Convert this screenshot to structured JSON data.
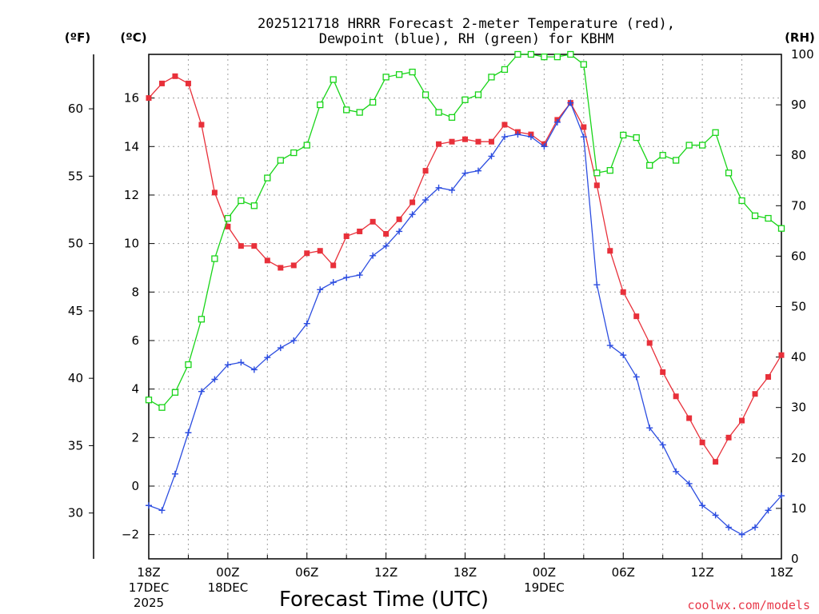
{
  "title_line1": "2025121718 HRRR Forecast 2-meter Temperature (red),",
  "title_line2": "Dewpoint (blue), RH (green) for KBHM",
  "unit_f": "(ºF)",
  "unit_c": "(ºC)",
  "unit_rh": "(RH)",
  "credit": "coolwx.com/models",
  "chart_data": {
    "type": "line",
    "title": "2025121718 HRRR Forecast 2-meter Temperature (red), Dewpoint (blue), RH (green) for KBHM",
    "xlabel": "Forecast Time (UTC)",
    "x": [
      0,
      1,
      2,
      3,
      4,
      5,
      6,
      7,
      8,
      9,
      10,
      11,
      12,
      13,
      14,
      15,
      16,
      17,
      18,
      19,
      20,
      21,
      22,
      23,
      24,
      25,
      26,
      27,
      28,
      29,
      30,
      31,
      32,
      33,
      34,
      35,
      36,
      37,
      38,
      39,
      40,
      41,
      42,
      43,
      44,
      45,
      46,
      47,
      48
    ],
    "x_unit": "forecast hour",
    "xlim": [
      0,
      48
    ],
    "x_ticks": [
      {
        "hour": 0,
        "lines": [
          "18Z",
          "17DEC",
          "2025"
        ]
      },
      {
        "hour": 6,
        "lines": [
          "00Z",
          "18DEC"
        ]
      },
      {
        "hour": 12,
        "lines": [
          "06Z"
        ]
      },
      {
        "hour": 18,
        "lines": [
          "12Z"
        ]
      },
      {
        "hour": 24,
        "lines": [
          "18Z"
        ]
      },
      {
        "hour": 30,
        "lines": [
          "00Z",
          "19DEC"
        ]
      },
      {
        "hour": 36,
        "lines": [
          "06Z"
        ]
      },
      {
        "hour": 42,
        "lines": [
          "12Z"
        ]
      },
      {
        "hour": 48,
        "lines": [
          "18Z"
        ]
      }
    ],
    "y_left_c": {
      "label": "(ºC)",
      "range": [
        -3,
        17.8
      ],
      "ticks": [
        16,
        14,
        12,
        10,
        8,
        6,
        4,
        2,
        0,
        -2
      ]
    },
    "y_left_f": {
      "label": "(ºF)",
      "ticks": [
        60,
        55,
        50,
        45,
        40,
        35,
        30
      ]
    },
    "y_right_rh": {
      "label": "(RH)",
      "range": [
        0,
        100
      ],
      "ticks": [
        100,
        90,
        80,
        70,
        60,
        50,
        40,
        30,
        20,
        10,
        0
      ]
    },
    "series": [
      {
        "name": "Temperature",
        "axis": "C",
        "color": "#e8303a",
        "marker": "filled-square",
        "values": [
          16.0,
          16.6,
          16.9,
          16.6,
          14.9,
          12.1,
          10.7,
          9.9,
          9.9,
          9.3,
          9.0,
          9.1,
          9.6,
          9.7,
          9.1,
          10.3,
          10.5,
          10.9,
          10.4,
          11.0,
          11.7,
          13.0,
          14.1,
          14.2,
          14.3,
          14.2,
          14.2,
          14.9,
          14.6,
          14.5,
          14.1,
          15.1,
          15.8,
          14.8,
          12.4,
          9.7,
          8.0,
          7.0,
          5.9,
          4.7,
          3.7,
          2.8,
          1.8,
          1.0,
          2.0,
          2.7,
          3.8,
          4.5,
          5.4
        ]
      },
      {
        "name": "Dewpoint",
        "axis": "C",
        "color": "#2c4de0",
        "marker": "plus",
        "values": [
          -0.8,
          -1.0,
          0.5,
          2.2,
          3.9,
          4.4,
          5.0,
          5.1,
          4.8,
          5.3,
          5.7,
          6.0,
          6.7,
          8.1,
          8.4,
          8.6,
          8.7,
          9.5,
          9.9,
          10.5,
          11.2,
          11.8,
          12.3,
          12.2,
          12.9,
          13.0,
          13.6,
          14.4,
          14.5,
          14.4,
          14.0,
          15.0,
          15.8,
          14.4,
          8.3,
          5.8,
          5.4,
          4.5,
          2.4,
          1.7,
          0.6,
          0.1,
          -0.8,
          -1.2,
          -1.7,
          -2.0,
          -1.7,
          -1.0,
          -0.4
        ]
      },
      {
        "name": "RH",
        "axis": "RH",
        "color": "#18d418",
        "marker": "open-square",
        "values": [
          31.5,
          30.0,
          33.0,
          38.5,
          47.5,
          59.5,
          67.5,
          71.0,
          70.0,
          75.5,
          79.0,
          80.5,
          82.0,
          90.0,
          95.0,
          89.0,
          88.5,
          90.5,
          95.5,
          96.0,
          96.5,
          92.0,
          88.5,
          87.5,
          91.0,
          92.0,
          95.5,
          97.0,
          100.0,
          100.0,
          99.5,
          99.5,
          100.0,
          98.0,
          76.5,
          77.0,
          84.0,
          83.5,
          78.0,
          80.0,
          79.0,
          82.0,
          82.0,
          84.5,
          76.5,
          71.0,
          68.0,
          67.5,
          65.5
        ]
      }
    ]
  }
}
